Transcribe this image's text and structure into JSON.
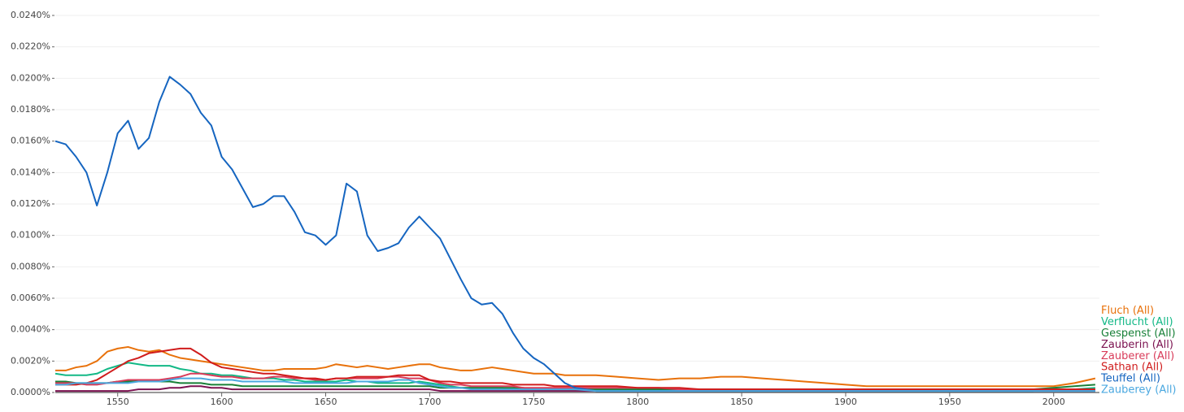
{
  "chart_data": {
    "type": "line",
    "x": [
      1520,
      1525,
      1530,
      1535,
      1540,
      1545,
      1550,
      1555,
      1560,
      1565,
      1570,
      1575,
      1580,
      1585,
      1590,
      1595,
      1600,
      1605,
      1610,
      1615,
      1620,
      1625,
      1630,
      1635,
      1640,
      1645,
      1650,
      1655,
      1660,
      1665,
      1670,
      1675,
      1680,
      1685,
      1690,
      1695,
      1700,
      1705,
      1710,
      1715,
      1720,
      1725,
      1730,
      1735,
      1740,
      1745,
      1750,
      1755,
      1760,
      1765,
      1770,
      1780,
      1790,
      1800,
      1810,
      1820,
      1830,
      1840,
      1850,
      1860,
      1870,
      1880,
      1890,
      1900,
      1910,
      1920,
      1930,
      1940,
      1950,
      1960,
      1970,
      1980,
      1990,
      2000,
      2010,
      2020
    ],
    "xlim": [
      1520,
      2022
    ],
    "xticks": [
      1550,
      1600,
      1650,
      1700,
      1750,
      1800,
      1850,
      1900,
      1950,
      2000
    ],
    "ylim": [
      0,
      0.024
    ],
    "yticks": [
      {
        "value": 0,
        "label": "0.0000%"
      },
      {
        "value": 0.002,
        "label": "0.0020%"
      },
      {
        "value": 0.004,
        "label": "0.0040%"
      },
      {
        "value": 0.006,
        "label": "0.0060%"
      },
      {
        "value": 0.008,
        "label": "0.0080%"
      },
      {
        "value": 0.01,
        "label": "0.0100%"
      },
      {
        "value": 0.012,
        "label": "0.0120%"
      },
      {
        "value": 0.014,
        "label": "0.0140%"
      },
      {
        "value": 0.016,
        "label": "0.0160%"
      },
      {
        "value": 0.018,
        "label": "0.0180%"
      },
      {
        "value": 0.02,
        "label": "0.0200%"
      },
      {
        "value": 0.022,
        "label": "0.0220%"
      },
      {
        "value": 0.024,
        "label": "0.0240%"
      }
    ],
    "grid": true,
    "legend": "right",
    "series": [
      {
        "name": "Fluch (All)",
        "color": "#e8710a",
        "values": [
          0.0014,
          0.0014,
          0.0016,
          0.0017,
          0.002,
          0.0026,
          0.0028,
          0.0029,
          0.0027,
          0.0026,
          0.0027,
          0.0024,
          0.0022,
          0.0021,
          0.002,
          0.0019,
          0.0018,
          0.0017,
          0.0016,
          0.0015,
          0.0014,
          0.0014,
          0.0015,
          0.0015,
          0.0015,
          0.0015,
          0.0016,
          0.0018,
          0.0017,
          0.0016,
          0.0017,
          0.0016,
          0.0015,
          0.0016,
          0.0017,
          0.0018,
          0.0018,
          0.0016,
          0.0015,
          0.0014,
          0.0014,
          0.0015,
          0.0016,
          0.0015,
          0.0014,
          0.0013,
          0.0012,
          0.0012,
          0.0012,
          0.0011,
          0.0011,
          0.0011,
          0.001,
          0.0009,
          0.0008,
          0.0009,
          0.0009,
          0.001,
          0.001,
          0.0009,
          0.0008,
          0.0007,
          0.0006,
          0.0005,
          0.0004,
          0.0004,
          0.0004,
          0.0004,
          0.0004,
          0.0004,
          0.0004,
          0.0004,
          0.0004,
          0.0004,
          0.0006,
          0.0009
        ]
      },
      {
        "name": "Verflucht (All)",
        "color": "#12b886",
        "values": [
          0.0012,
          0.0011,
          0.0011,
          0.0011,
          0.0012,
          0.0015,
          0.0017,
          0.0019,
          0.0018,
          0.0017,
          0.0017,
          0.0017,
          0.0015,
          0.0014,
          0.0012,
          0.0012,
          0.0011,
          0.0011,
          0.001,
          0.0009,
          0.0009,
          0.0009,
          0.0008,
          0.0008,
          0.0007,
          0.0007,
          0.0007,
          0.0007,
          0.0008,
          0.0007,
          0.0007,
          0.0006,
          0.0006,
          0.0006,
          0.0006,
          0.0007,
          0.0006,
          0.0005,
          0.0004,
          0.0003,
          0.0003,
          0.0003,
          0.0003,
          0.0003,
          0.0002,
          0.0002,
          0.0002,
          0.0002,
          0.0002,
          0.0002,
          0.0002,
          0.0001,
          0.0001,
          0.0001,
          0.0001,
          0.0001,
          0.0001,
          0.0001,
          0.0001,
          0.0001,
          0.0001,
          0.0001,
          0.0001,
          0.0001,
          0.0001,
          0.0001,
          0.0001,
          0.0001,
          0.0001,
          0.0001,
          0.0001,
          0.0001,
          0.0001,
          0.0002,
          0.0002,
          0.0003
        ]
      },
      {
        "name": "Gespenst (All)",
        "color": "#188038",
        "values": [
          0.0007,
          0.0007,
          0.0006,
          0.0006,
          0.0006,
          0.0006,
          0.0007,
          0.0007,
          0.0007,
          0.0007,
          0.0007,
          0.0007,
          0.0006,
          0.0006,
          0.0006,
          0.0005,
          0.0005,
          0.0005,
          0.0004,
          0.0004,
          0.0004,
          0.0004,
          0.0004,
          0.0004,
          0.0004,
          0.0004,
          0.0004,
          0.0004,
          0.0004,
          0.0004,
          0.0004,
          0.0004,
          0.0004,
          0.0004,
          0.0004,
          0.0004,
          0.0004,
          0.0003,
          0.0003,
          0.0003,
          0.0003,
          0.0003,
          0.0003,
          0.0003,
          0.0003,
          0.0003,
          0.0002,
          0.0002,
          0.0002,
          0.0002,
          0.0002,
          0.0002,
          0.0002,
          0.0002,
          0.0002,
          0.0002,
          0.0002,
          0.0002,
          0.0002,
          0.0002,
          0.0002,
          0.0002,
          0.0002,
          0.0002,
          0.0002,
          0.0002,
          0.0002,
          0.0002,
          0.0002,
          0.0002,
          0.0002,
          0.0002,
          0.0002,
          0.0003,
          0.0004,
          0.0005
        ]
      },
      {
        "name": "Zauberin (All)",
        "color": "#7b1250",
        "values": [
          0.0001,
          0.0001,
          0.0001,
          0.0001,
          0.0001,
          0.0001,
          0.0001,
          0.0001,
          0.0002,
          0.0002,
          0.0002,
          0.0003,
          0.0003,
          0.0004,
          0.0004,
          0.0003,
          0.0003,
          0.0002,
          0.0002,
          0.0002,
          0.0002,
          0.0002,
          0.0002,
          0.0002,
          0.0002,
          0.0002,
          0.0002,
          0.0002,
          0.0002,
          0.0002,
          0.0002,
          0.0002,
          0.0002,
          0.0002,
          0.0002,
          0.0002,
          0.0002,
          0.0001,
          0.0001,
          0.0001,
          0.0001,
          0.0001,
          0.0001,
          0.0001,
          0.0001,
          0.0001,
          0.0001,
          0.0001,
          0.0001,
          0.0001,
          0.0001,
          0.0001,
          0.0001,
          0.0001,
          0.0001,
          0.0001,
          0.0001,
          0.0001,
          0.0001,
          0.0001,
          0.0001,
          0.0001,
          0.0001,
          0.0001,
          0.0001,
          0.0001,
          0.0001,
          0.0001,
          0.0001,
          0.0001,
          0.0001,
          0.0001,
          0.0001,
          0.0001,
          0.0001,
          0.0001
        ]
      },
      {
        "name": "Zauberer (All)",
        "color": "#d93c5a",
        "values": [
          0.0006,
          0.0006,
          0.0006,
          0.0005,
          0.0005,
          0.0006,
          0.0007,
          0.0008,
          0.0008,
          0.0008,
          0.0008,
          0.0009,
          0.001,
          0.0012,
          0.0012,
          0.0011,
          0.001,
          0.001,
          0.0009,
          0.0009,
          0.0009,
          0.001,
          0.001,
          0.0009,
          0.0009,
          0.0008,
          0.0008,
          0.0009,
          0.0009,
          0.0009,
          0.0009,
          0.0009,
          0.001,
          0.001,
          0.0009,
          0.0009,
          0.0008,
          0.0006,
          0.0005,
          0.0005,
          0.0004,
          0.0004,
          0.0004,
          0.0004,
          0.0004,
          0.0003,
          0.0003,
          0.0003,
          0.0003,
          0.0003,
          0.0003,
          0.0003,
          0.0003,
          0.0003,
          0.0003,
          0.0002,
          0.0002,
          0.0002,
          0.0002,
          0.0002,
          0.0002,
          0.0002,
          0.0002,
          0.0002,
          0.0002,
          0.0002,
          0.0002,
          0.0002,
          0.0002,
          0.0002,
          0.0002,
          0.0002,
          0.0002,
          0.0002,
          0.0002,
          0.0002
        ]
      },
      {
        "name": "Sathan (All)",
        "color": "#d01c1c",
        "values": [
          0.0005,
          0.0005,
          0.0005,
          0.0006,
          0.0008,
          0.0012,
          0.0016,
          0.002,
          0.0022,
          0.0025,
          0.0026,
          0.0027,
          0.0028,
          0.0028,
          0.0024,
          0.0019,
          0.0016,
          0.0015,
          0.0014,
          0.0013,
          0.0012,
          0.0012,
          0.0011,
          0.001,
          0.0009,
          0.0009,
          0.0008,
          0.0009,
          0.0009,
          0.001,
          0.001,
          0.001,
          0.001,
          0.0011,
          0.0011,
          0.0011,
          0.0008,
          0.0007,
          0.0007,
          0.0006,
          0.0006,
          0.0006,
          0.0006,
          0.0006,
          0.0005,
          0.0005,
          0.0005,
          0.0005,
          0.0004,
          0.0004,
          0.0004,
          0.0004,
          0.0004,
          0.0003,
          0.0003,
          0.0003,
          0.0002,
          0.0002,
          0.0002,
          0.0002,
          0.0002,
          0.0002,
          0.0002,
          0.0002,
          0.0002,
          0.0002,
          0.0002,
          0.0002,
          0.0002,
          0.0002,
          0.0002,
          0.0002,
          0.0002,
          0.0002,
          0.0002,
          0.0002
        ]
      },
      {
        "name": "Teuffel (All)",
        "color": "#1565c0",
        "values": [
          0.016,
          0.0158,
          0.015,
          0.014,
          0.0119,
          0.014,
          0.0165,
          0.0173,
          0.0155,
          0.0162,
          0.0185,
          0.0201,
          0.0196,
          0.019,
          0.0178,
          0.017,
          0.015,
          0.0142,
          0.013,
          0.0118,
          0.012,
          0.0125,
          0.0125,
          0.0115,
          0.0102,
          0.01,
          0.0094,
          0.01,
          0.0133,
          0.0128,
          0.01,
          0.009,
          0.0092,
          0.0095,
          0.0105,
          0.0112,
          0.0105,
          0.0098,
          0.0085,
          0.0072,
          0.006,
          0.0056,
          0.0057,
          0.005,
          0.0038,
          0.0028,
          0.0022,
          0.0018,
          0.0012,
          0.0006,
          0.0003,
          0.0001,
          0.0001,
          0.0001,
          0.0001,
          0.0001,
          0.0001,
          0.0001,
          0.0001,
          0.0001,
          0.0001,
          0.0001,
          0.0001,
          0.0001,
          0.0001,
          0.0001,
          0.0001,
          0.0001,
          0.0001,
          0.0001,
          0.0001,
          0.0001,
          0.0001,
          0.0001,
          0.0001,
          0.0001
        ]
      },
      {
        "name": "Zauberey (All)",
        "color": "#4ba8e0",
        "values": [
          0.0005,
          0.0005,
          0.0006,
          0.0006,
          0.0006,
          0.0006,
          0.0006,
          0.0006,
          0.0007,
          0.0007,
          0.0007,
          0.0008,
          0.0009,
          0.0009,
          0.0009,
          0.0008,
          0.0008,
          0.0008,
          0.0007,
          0.0007,
          0.0007,
          0.0007,
          0.0007,
          0.0006,
          0.0006,
          0.0006,
          0.0006,
          0.0006,
          0.0006,
          0.0007,
          0.0007,
          0.0007,
          0.0007,
          0.0008,
          0.0008,
          0.0006,
          0.0005,
          0.0004,
          0.0003,
          0.0003,
          0.0002,
          0.0002,
          0.0002,
          0.0002,
          0.0002,
          0.0002,
          0.0002,
          0.0002,
          0.0002,
          0.0002,
          0.0002,
          0.0001,
          0.0001,
          0.0001,
          0.0001,
          0.0001,
          0.0001,
          0.0001,
          0.0001,
          0.0001,
          0.0001,
          0.0001,
          0.0001,
          0.0001,
          0.0001,
          0.0001,
          0.0001,
          0.0001,
          0.0001,
          0.0001,
          0.0001,
          0.0001,
          0.0001,
          0.0001,
          0.0001,
          0.0001
        ]
      }
    ]
  }
}
